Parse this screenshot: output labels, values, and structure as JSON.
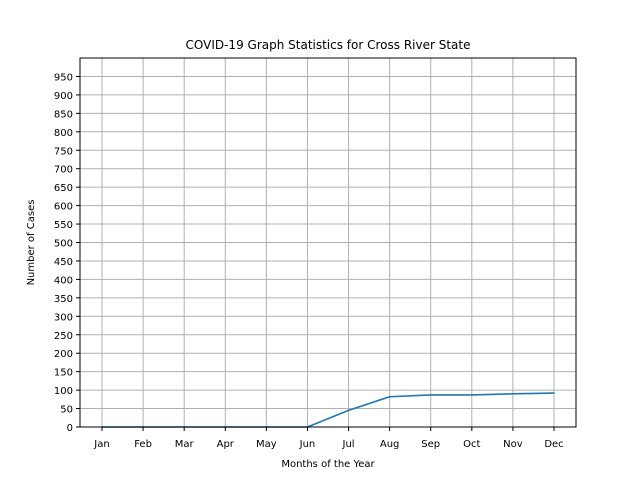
{
  "chart_data": {
    "type": "line",
    "title": "COVID-19 Graph Statistics for Cross River State",
    "xlabel": "Months of the Year",
    "ylabel": "Number of Cases",
    "categories": [
      "Jan",
      "Feb",
      "Mar",
      "Apr",
      "May",
      "Jun",
      "Jul",
      "Aug",
      "Sep",
      "Oct",
      "Nov",
      "Dec"
    ],
    "series": [
      {
        "values": [
          0,
          0,
          0,
          0,
          0,
          0,
          45,
          82,
          87,
          87,
          90,
          92
        ],
        "color": "#1f77b4"
      }
    ],
    "ylim": [
      0,
      1000
    ],
    "yticks": [
      0,
      50,
      100,
      150,
      200,
      250,
      300,
      350,
      400,
      450,
      500,
      550,
      600,
      650,
      700,
      750,
      800,
      850,
      900,
      950
    ],
    "grid": true,
    "grid_color": "#b0b0b0"
  }
}
